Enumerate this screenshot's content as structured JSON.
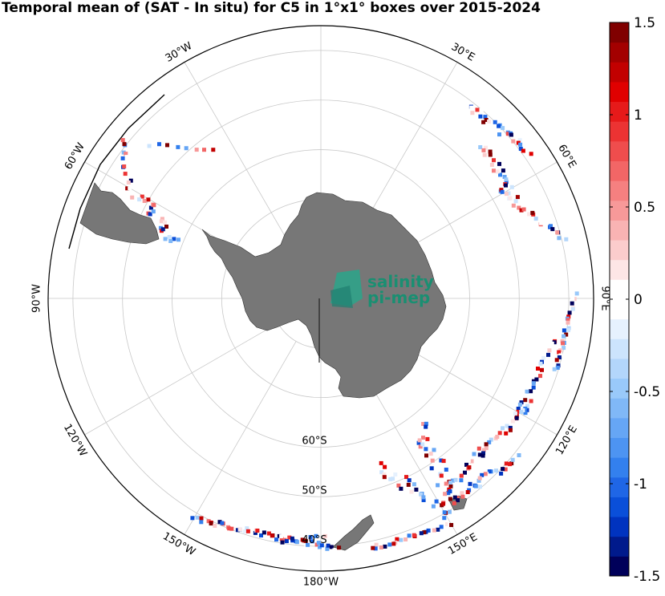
{
  "title": "Temporal mean of (SAT - In situ) for C5 in 1°x1° boxes over 2015-2024",
  "logo": {
    "line1": "salinity",
    "line2": "pi-mep"
  },
  "longitude_labels": [
    {
      "text": "30°E",
      "lon": 30
    },
    {
      "text": "60°E",
      "lon": 60
    },
    {
      "text": "90°E",
      "lon": 90
    },
    {
      "text": "120°E",
      "lon": 120
    },
    {
      "text": "150°E",
      "lon": 150
    },
    {
      "text": "180°W",
      "lon": 180
    },
    {
      "text": "150°W",
      "lon": -150
    },
    {
      "text": "120°W",
      "lon": -120
    },
    {
      "text": "90°W",
      "lon": -90
    },
    {
      "text": "60°W",
      "lon": -60
    },
    {
      "text": "30°W",
      "lon": -30
    }
  ],
  "latitude_labels": [
    {
      "text": "60°S",
      "lat": -60
    },
    {
      "text": "50°S",
      "lat": -50
    },
    {
      "text": "40°S",
      "lat": -40
    }
  ],
  "colorbar": {
    "min": -1.5,
    "max": 1.5,
    "ticks": [
      {
        "value": 1.5,
        "label": "1.5"
      },
      {
        "value": 1,
        "label": "1"
      },
      {
        "value": 0.5,
        "label": "0.5"
      },
      {
        "value": 0,
        "label": "0"
      },
      {
        "value": -0.5,
        "label": "-0.5"
      },
      {
        "value": -1,
        "label": "-1"
      },
      {
        "value": -1.5,
        "label": "-1.5"
      }
    ],
    "colors": [
      "#00005a",
      "#001a8c",
      "#0033bf",
      "#0a4fd9",
      "#1f66e6",
      "#3380ee",
      "#4d94f2",
      "#66a6f5",
      "#80b8f7",
      "#99c9fa",
      "#b3d6fb",
      "#cce4fd",
      "#e6f1fe",
      "#ffffff",
      "#ffffff",
      "#fde6e6",
      "#fbcccc",
      "#f9b3b3",
      "#f79999",
      "#f58080",
      "#f26666",
      "#ef4d4d",
      "#ec3333",
      "#e61a1a",
      "#e00000",
      "#c20000",
      "#a30000",
      "#800000"
    ]
  },
  "colors": {
    "land": "#777777",
    "grid": "#c8c8c8",
    "frame": "#000000",
    "logo_text": "#1a8f72",
    "logo_mark": "#2aa58a"
  }
}
